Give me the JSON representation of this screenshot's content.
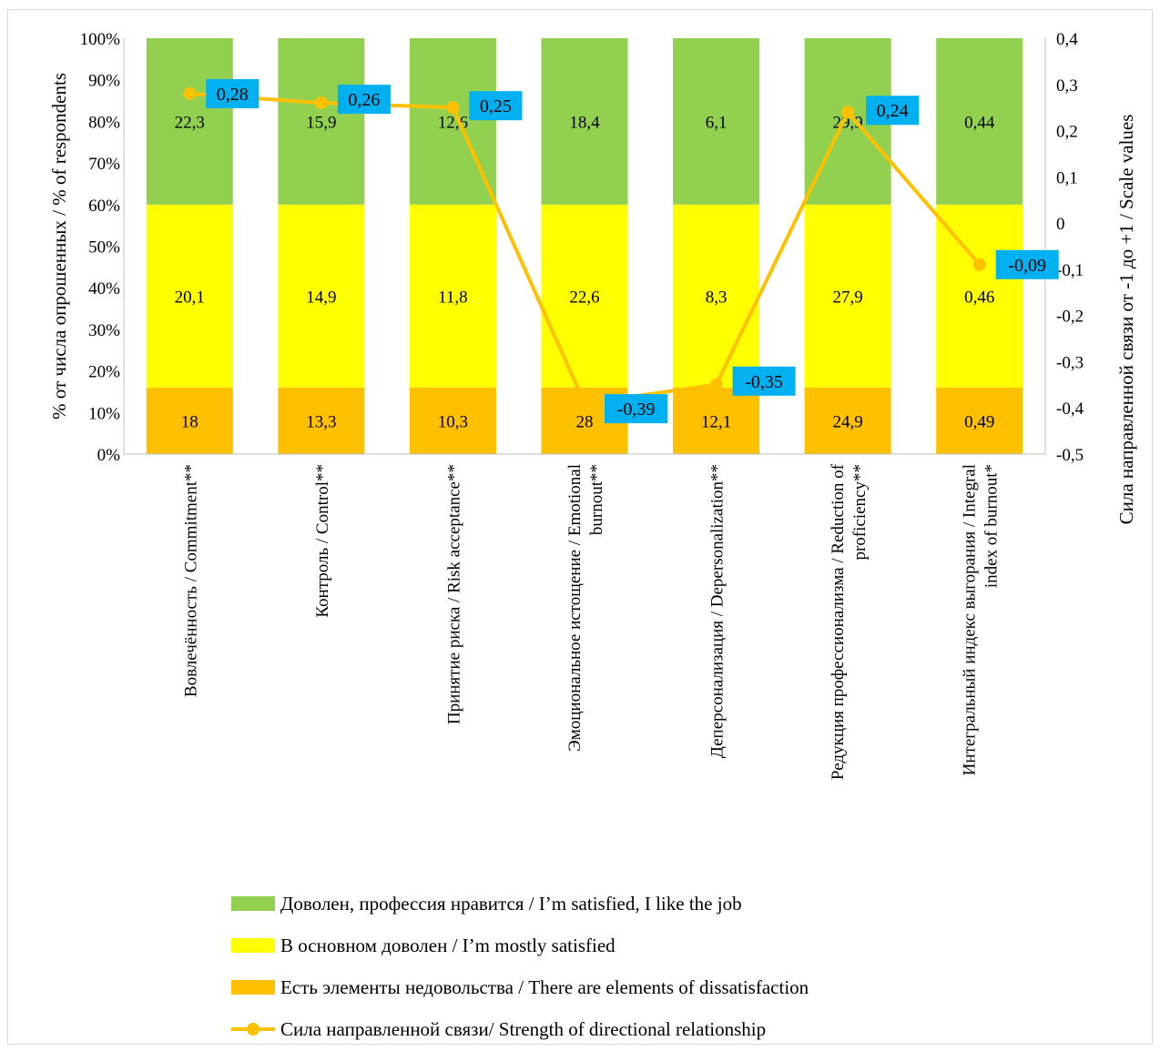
{
  "chart_data": {
    "type": "bar",
    "stacked": true,
    "percent_stacked": true,
    "categories": [
      [
        "Вовлечённость / Commitment**"
      ],
      [
        "Контроль / Control**"
      ],
      [
        "Принятие риска / Risk acceptance**"
      ],
      [
        "Эмоциональное истощение / Emotional",
        "burnout**"
      ],
      [
        "Деперсонализация / Depersonalization**"
      ],
      [
        "Редукция профессионализма / Reduction of",
        "proficiency**"
      ],
      [
        "Интегральный индекс выгорания / Integral",
        "index of burnout*"
      ]
    ],
    "series": [
      {
        "name": "Есть элементы недовольства / There are elements of dissatisfaction",
        "color": "#FFC000",
        "share": 16,
        "labels": [
          "18",
          "13,3",
          "10,3",
          "28",
          "12,1",
          "24,9",
          "0,49"
        ]
      },
      {
        "name": "В основном доволен / I’m mostly satisfied",
        "color": "#FFFF00",
        "share": 44,
        "labels": [
          "20,1",
          "14,9",
          "11,8",
          "22,6",
          "8,3",
          "27,9",
          "0,46"
        ]
      },
      {
        "name": "Доволен, профессия нравится / I’m satisfied, I like the job",
        "color": "#92D050",
        "share": 40,
        "labels": [
          "22,3",
          "15,9",
          "12,6",
          "18,4",
          "6,1",
          "29,9",
          "0,44"
        ]
      }
    ],
    "line_series": {
      "name": "Сила направленной связи/ Strength of directional relationship",
      "color": "#FFC000",
      "label_bg": "#00B0F0",
      "values": [
        0.28,
        0.26,
        0.25,
        -0.39,
        -0.35,
        0.24,
        -0.09
      ],
      "labels": [
        "0,28",
        "0,26",
        "0,25",
        "-0,39",
        "-0,35",
        "0,24",
        "-0,09"
      ]
    },
    "y_left": {
      "label": "% от числа опрошенных / % of respondents",
      "ylim": [
        0,
        100
      ],
      "ticks": [
        "0%",
        "10%",
        "20%",
        "30%",
        "40%",
        "50%",
        "60%",
        "70%",
        "80%",
        "90%",
        "100%"
      ]
    },
    "y_right": {
      "label": "Сила направленной  связи от -1 до +1 / Scale values",
      "ylim": [
        -0.5,
        0.4
      ],
      "ticks": [
        "-0,5",
        "-0,4",
        "-0,3",
        "-0,2",
        "-0,1",
        "0",
        "0,1",
        "0,2",
        "0,3",
        "0,4"
      ]
    },
    "legend_position": "bottom",
    "grid": false
  }
}
